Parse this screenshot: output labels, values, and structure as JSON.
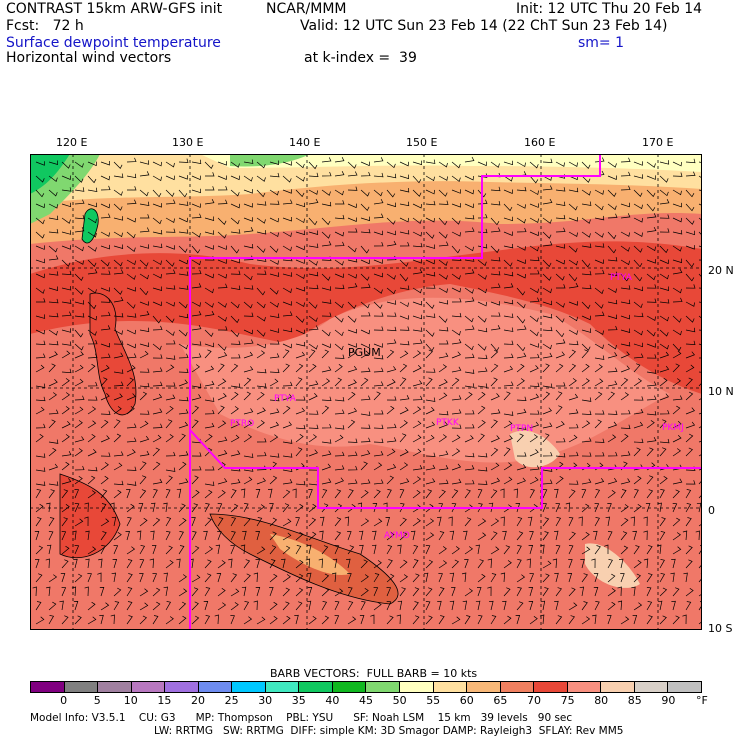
{
  "header": {
    "model_title": "CONTRAST 15km ARW-GFS init",
    "org": "NCAR/MMM",
    "init": "Init: 12 UTC Thu 20 Feb 14",
    "fcst": "Fcst:   72 h",
    "valid": "Valid: 12 UTC Sun 23 Feb 14 (22 ChT Sun 23 Feb 14)",
    "field1": "Surface dewpoint temperature",
    "smoothing": "sm= 1",
    "field2": "Horizontal wind vectors",
    "kindex": "at k-index =  39"
  },
  "map": {
    "lon_labels": [
      "120 E",
      "130 E",
      "140 E",
      "150 E",
      "160 E",
      "170 E"
    ],
    "lat_labels": [
      "20 N",
      "10 N",
      "0",
      "10 S"
    ],
    "stations": [
      {
        "id": "PGUM",
        "color": "#000000"
      },
      {
        "id": "PTYA",
        "color": "#ff00ff"
      },
      {
        "id": "PTRO",
        "color": "#ff00ff"
      },
      {
        "id": "PTKK",
        "color": "#ff00ff"
      },
      {
        "id": "PTPN",
        "color": "#ff00ff"
      },
      {
        "id": "PKMJ",
        "color": "#ff00ff"
      },
      {
        "id": "PTYA2",
        "label": "PTYA",
        "color": "#ff00ff"
      },
      {
        "id": "AYMO",
        "color": "#ff00ff"
      }
    ]
  },
  "colorbar": {
    "title": "BARB VECTORS:  FULL BARB = 10 kts",
    "ticks": [
      "0",
      "5",
      "10",
      "15",
      "20",
      "25",
      "30",
      "35",
      "40",
      "45",
      "50",
      "55",
      "60",
      "65",
      "70",
      "75",
      "80",
      "85",
      "90"
    ],
    "unit": "°F",
    "colors": [
      "#800080",
      "#808080",
      "#a080a0",
      "#b878c0",
      "#a070e0",
      "#6e8cf0",
      "#00c8ff",
      "#40e8c0",
      "#10c860",
      "#10b820",
      "#80d870",
      "#ffffc0",
      "#ffe0a0",
      "#f8b878",
      "#f08060",
      "#e84838",
      "#f89080",
      "#f8d0b0",
      "#d8d0c8",
      "#c0c0c0"
    ]
  },
  "footer": {
    "line1": "Model Info: V3.5.1    CU: G3      MP: Thompson    PBL: YSU      SF: Noah LSM    15 km   39 levels   90 sec",
    "line2": "LW: RRTMG   SW: RRTMG  DIFF: simple KM: 3D Smagor DAMP: Rayleigh3  SFLAY: Rev MM5"
  }
}
